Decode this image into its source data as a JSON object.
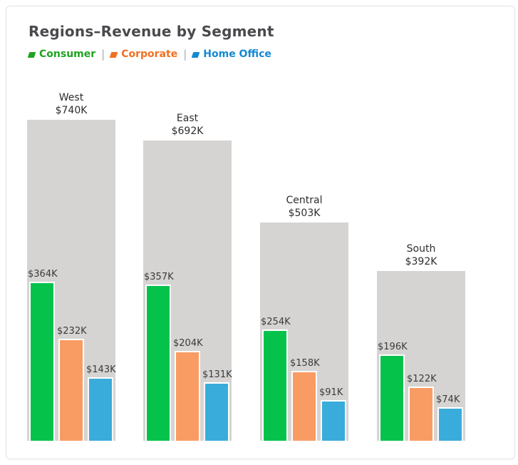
{
  "card": {
    "title": "Regions–Revenue by Segment"
  },
  "legend": {
    "separator": "|",
    "items": [
      {
        "id": "consumer",
        "label": "Consumer",
        "color": "#1fa321",
        "marker_icon": "parallelogram-icon"
      },
      {
        "id": "corporate",
        "label": "Corporate",
        "color": "#f3701e",
        "marker_icon": "parallelogram-icon"
      },
      {
        "id": "home-office",
        "label": "Home Office",
        "color": "#1489d2",
        "marker_icon": "parallelogram-icon"
      }
    ]
  },
  "chart_data": {
    "type": "bar",
    "title": "Regions–Revenue by Segment",
    "subtitle": "",
    "unit": "USD thousands",
    "categories": [
      "West",
      "East",
      "Central",
      "South"
    ],
    "totals": {
      "values": [
        740,
        692,
        503,
        392
      ],
      "labels": [
        "$740K",
        "$692K",
        "$503K",
        "$392K"
      ],
      "bar_color": "#d6d4d2"
    },
    "series": [
      {
        "name": "Consumer",
        "color": "#05c24b",
        "values": [
          364,
          357,
          254,
          196
        ],
        "labels": [
          "$364K",
          "$357K",
          "$254K",
          "$196K"
        ]
      },
      {
        "name": "Corporate",
        "color": "#f99c64",
        "values": [
          232,
          204,
          158,
          122
        ],
        "labels": [
          "$232K",
          "$204K",
          "$158K",
          "$122K"
        ]
      },
      {
        "name": "Home Office",
        "color": "#39acdb",
        "values": [
          143,
          131,
          91,
          74
        ],
        "labels": [
          "$143K",
          "$131K",
          "$91K",
          "$74K"
        ]
      }
    ],
    "legend_position": "top-left",
    "grid": false,
    "axes_visible": false,
    "value_labels_visible": true
  }
}
